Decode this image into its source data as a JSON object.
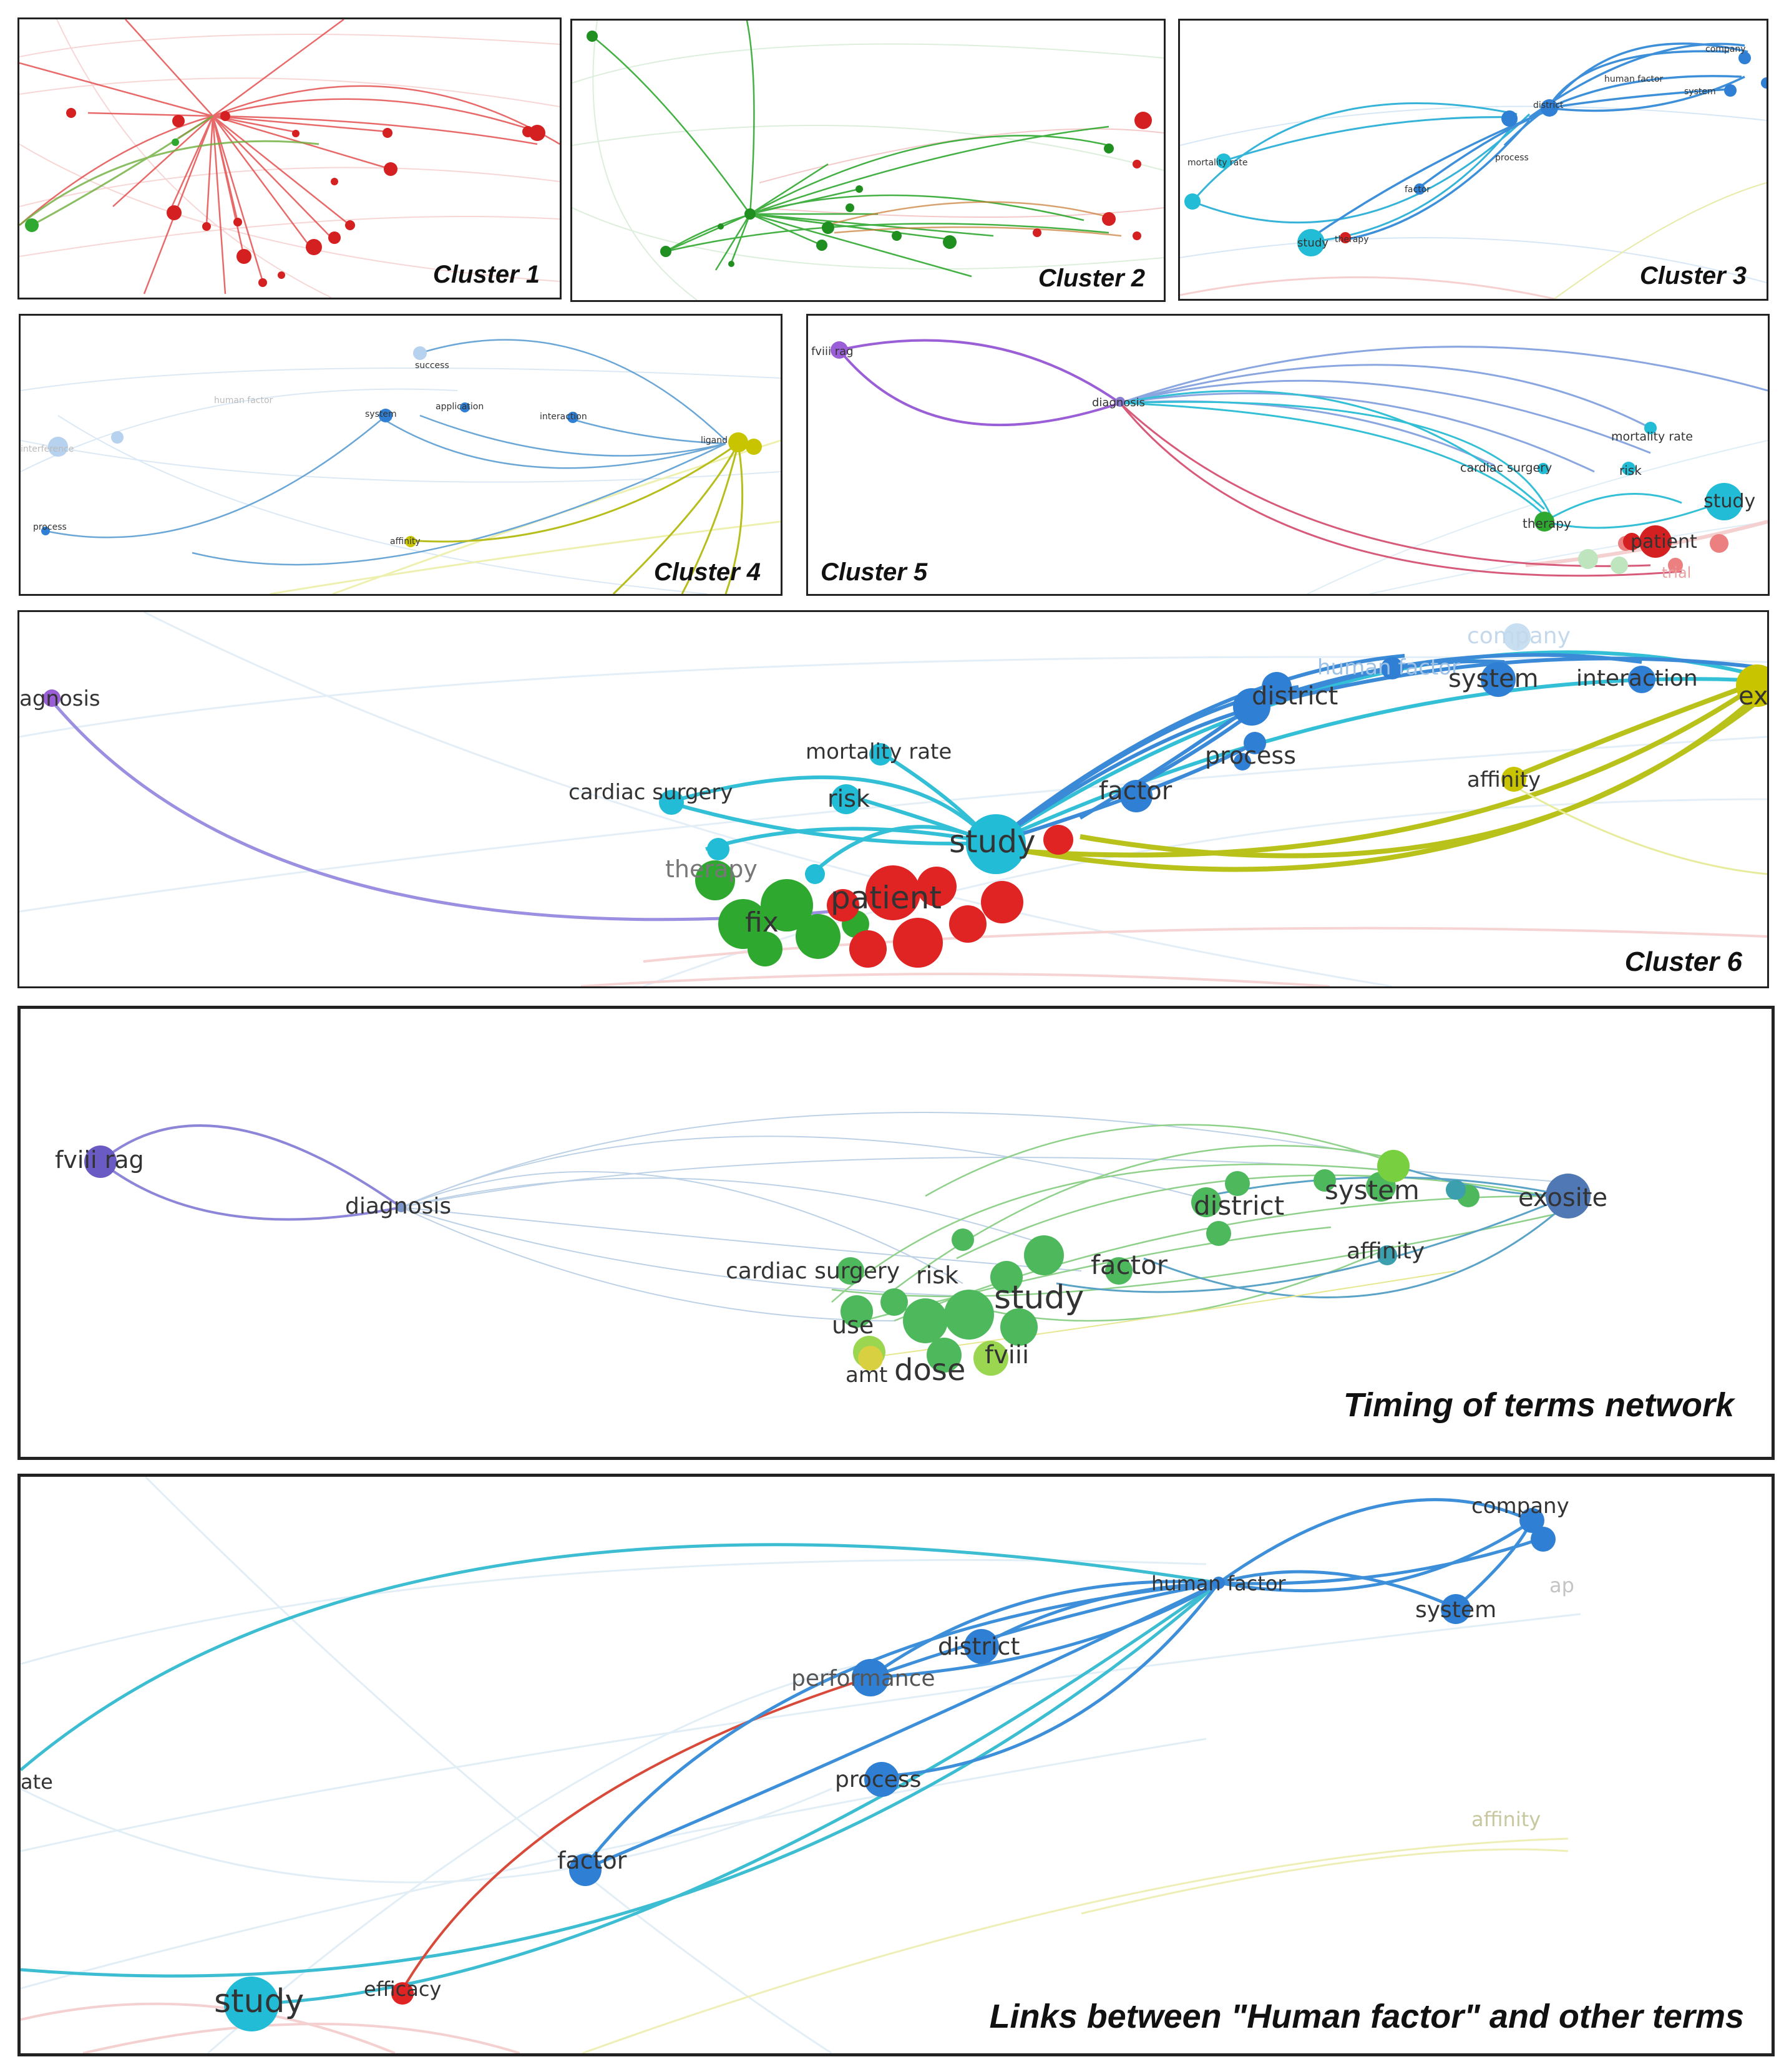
{
  "captions": {
    "cluster1": "Cluster 1",
    "cluster2": "Cluster 2",
    "cluster3": "Cluster 3",
    "cluster4": "Cluster 4",
    "cluster5": "Cluster 5",
    "cluster6": "Cluster 6",
    "timing": "Timing of terms network",
    "human_factor": "Links between \"Human factor\" and other terms"
  },
  "colors": {
    "cluster_red": "#e02424",
    "cluster_green": "#2ea82e",
    "cluster_blue": "#2f7fd4",
    "cluster_yellow": "#c8c400",
    "cluster_purple": "#9a5fd6",
    "cluster_cyan": "#22bcd6"
  },
  "cluster3_labels": {
    "company": "company",
    "human_factor": "human factor",
    "system": "system",
    "district": "district",
    "mortality_rate": "mortality rate",
    "process": "process",
    "factor": "factor",
    "study": "study",
    "therapy": "therapy"
  },
  "cluster4_labels": {
    "success": "success",
    "human_factor": "human factor",
    "system": "system",
    "application": "application",
    "interaction": "interaction",
    "ligand": "ligand",
    "process": "process",
    "affinity": "affinity",
    "interference": "interference"
  },
  "cluster5_labels": {
    "fviii_rag": "fviii rag",
    "diagnosis": "diagnosis",
    "mortality_rate": "mortality rate",
    "cardiac_surgery": "cardiac surgery",
    "risk": "risk",
    "study": "study",
    "therapy": "therapy",
    "patient": "patient",
    "trial": "trial"
  },
  "cluster6_labels": {
    "diagnosis": "agnosis",
    "company": "company",
    "human_factor": "human factor",
    "district": "district",
    "system": "system",
    "interaction": "interaction",
    "exosite": "exo",
    "mortality_rate": "mortality rate",
    "process": "process",
    "affinity": "affinity",
    "cardiac_surgery": "cardiac surgery",
    "risk": "risk",
    "factor": "factor",
    "study": "study",
    "therapy": "therapy",
    "patient": "patient",
    "fix": "fix"
  },
  "timing_labels": {
    "fviii_rag": "fviii rag",
    "diagnosis": "diagnosis",
    "district": "district",
    "system": "system",
    "exosite": "exosite",
    "affinity": "affinity",
    "cardiac_surgery": "cardiac surgery",
    "risk": "risk",
    "factor": "factor",
    "study": "study",
    "use": "use",
    "fviii": "fviii",
    "amt": "amt",
    "dose": "dose"
  },
  "hf_labels": {
    "company": "company",
    "human_factor": "human factor",
    "ap": "ap",
    "system": "system",
    "district": "district",
    "performance": "performance",
    "process": "process",
    "ate": "ate",
    "affinity": "affinity",
    "factor": "factor",
    "study": "study",
    "efficacy": "efficacy"
  }
}
